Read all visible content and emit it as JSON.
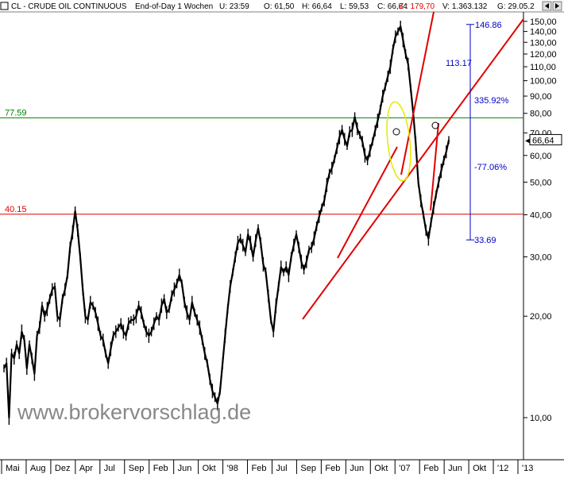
{
  "header": {
    "symbol_text": "CL - CRUDE OIL CONTINUOUS",
    "period_text": "End-of-Day 1 Wochen",
    "time_text": "U: 23:59",
    "open_text": "O: 61,50",
    "high_text": "H: 66,64",
    "low_text": "L: 59,53",
    "close_text": "C: 66,64",
    "change_text": "Z : 179,70",
    "volume_text": "V: 1.363.132",
    "date_text": "G: 29.05.2"
  },
  "watermark": "www.brokervorschlag.de",
  "colors": {
    "background": "#ffffff",
    "price": "#000000",
    "trendline": "#e00000",
    "resistance_green": "#008000",
    "support_red": "#e00000",
    "measure_blue": "#0000c8",
    "ellipse": "#e8e800",
    "header_text": "#000000",
    "change_text": "#e00000",
    "watermark": "#888888",
    "grid": "#cccccc"
  },
  "chart_data": {
    "type": "line",
    "yscale": "log",
    "ylim": [
      7.5,
      160
    ],
    "yticks": [
      10,
      20,
      30,
      40,
      50,
      60,
      70,
      80,
      90,
      100,
      110,
      120,
      130,
      140,
      150
    ],
    "ytick_labels": [
      "10,00",
      "20,00",
      "30,00",
      "40,00",
      "50,00",
      "60,00",
      "70,00",
      "80,00",
      "90,00",
      "100,00",
      "110,00",
      "120,00",
      "130,00",
      "140,00",
      "150,00"
    ],
    "x_tick_labels": [
      "Mai",
      "Aug",
      "Dez",
      "Apr",
      "Jul",
      "Sep",
      "Feb",
      "Jun",
      "Okt",
      "'98",
      "Feb",
      "Jul",
      "Sep",
      "Feb",
      "Jun",
      "Okt",
      "'07",
      "Feb",
      "Jun",
      "Okt",
      "'12",
      "'13"
    ],
    "series": [
      {
        "values": [
          14,
          14.5,
          10,
          15.5,
          15,
          16.5,
          15.5,
          18,
          17,
          14,
          16.5,
          15,
          13.5,
          17.5,
          18.5,
          21.5,
          20,
          21,
          22.5,
          24,
          24.5,
          20,
          19.5,
          22.5,
          24,
          26.5,
          32,
          35.5,
          41,
          36,
          30,
          24,
          20,
          19.5,
          22,
          21.5,
          20.5,
          19,
          17.5,
          17,
          15.5,
          14.5,
          16,
          17.5,
          18,
          18.5,
          19,
          18,
          17.5,
          19,
          19.5,
          19.5,
          20,
          21.5,
          20.5,
          19,
          18,
          17.5,
          18,
          19,
          20,
          19.5,
          21.5,
          22.5,
          20.5,
          21,
          23,
          24,
          25,
          26.5,
          25,
          22,
          20.5,
          19.5,
          22,
          20.5,
          19.5,
          18.5,
          17,
          15.5,
          14.5,
          13,
          12,
          11.5,
          11,
          12,
          14.5,
          17.5,
          21,
          24.5,
          27,
          30,
          33,
          34,
          32.5,
          31,
          35,
          33,
          30,
          33.5,
          36.5,
          33,
          28.5,
          27,
          23,
          19.5,
          18,
          21.5,
          24.5,
          28,
          27,
          28,
          26.5,
          30,
          32.5,
          35,
          32,
          29,
          27.5,
          29,
          31.5,
          32,
          34,
          37,
          39.5,
          42,
          44,
          49,
          53,
          55,
          58.5,
          63,
          68,
          71.5,
          67,
          64,
          70.5,
          71.5,
          78,
          72,
          69,
          66,
          60,
          58,
          62,
          66,
          71,
          76,
          82,
          90,
          96,
          103,
          110,
          124,
          135,
          140,
          145,
          132,
          120,
          112,
          95,
          80,
          65,
          50,
          44,
          40,
          36,
          34,
          38,
          42,
          46,
          50,
          54,
          58,
          61.5,
          66.64
        ]
      }
    ],
    "annotations": {
      "resistance_label": "77.59",
      "support_label": "40.15",
      "measure_top": "146.86",
      "measure_mid": "113.17",
      "measure_bottom": "33.69",
      "measure_up_pct": "335.92%",
      "measure_down_pct": "-77.06%",
      "last_price": "66,64"
    },
    "grid": false
  }
}
